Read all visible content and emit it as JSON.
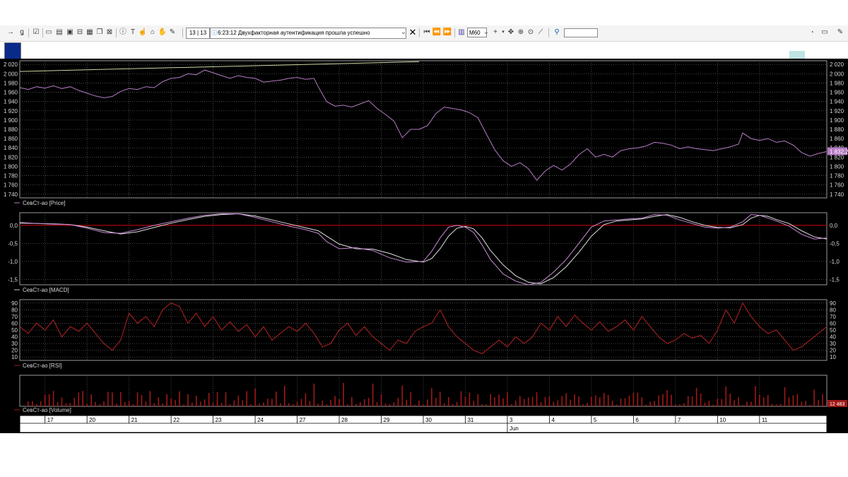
{
  "toolbar": {
    "counter": "13 | 13",
    "notification": "6:23:12  Двухфакторная аутентификация прошла успешно",
    "timeframe": "M60"
  },
  "colors": {
    "price_line": "#b57bc4",
    "macd_line": "#c98ad6",
    "signal_line": "#e0e0e0",
    "rsi_line": "#9a1f1f",
    "volume_bar": "#a21818",
    "zero_line": "#b00000",
    "grid": "#5a5a5a",
    "trend_line": "#c8d8a0"
  },
  "panels": {
    "price": {
      "legend": "СевСт-ао [Price]",
      "ticks": [
        "2 020",
        "2 000",
        "1 980",
        "1 960",
        "1 940",
        "1 920",
        "1 900",
        "1 880",
        "1 860",
        "1 840",
        "1 820",
        "1 800",
        "1 780",
        "1 760",
        "1 740"
      ],
      "tick_values": [
        2020,
        2000,
        1980,
        1960,
        1940,
        1920,
        1900,
        1880,
        1860,
        1840,
        1820,
        1800,
        1780,
        1760,
        1740
      ],
      "last_label": "1 832,2",
      "range": [
        1732,
        2028
      ],
      "series": [
        [
          0,
          1970
        ],
        [
          2,
          1966
        ],
        [
          4,
          1972
        ],
        [
          6,
          1969
        ],
        [
          8,
          1974
        ],
        [
          10,
          1968
        ],
        [
          12,
          1972
        ],
        [
          14,
          1964
        ],
        [
          16,
          1958
        ],
        [
          18,
          1952
        ],
        [
          20,
          1948
        ],
        [
          22,
          1951
        ],
        [
          24,
          1962
        ],
        [
          26,
          1968
        ],
        [
          28,
          1966
        ],
        [
          30,
          1972
        ],
        [
          32,
          1970
        ],
        [
          34,
          1983
        ],
        [
          36,
          1990
        ],
        [
          38,
          1992
        ],
        [
          40,
          2000
        ],
        [
          42,
          1998
        ],
        [
          44,
          2008
        ],
        [
          46,
          2002
        ],
        [
          48,
          1996
        ],
        [
          50,
          1990
        ],
        [
          52,
          1996
        ],
        [
          54,
          1992
        ],
        [
          56,
          1990
        ],
        [
          58,
          1982
        ],
        [
          60,
          1984
        ],
        [
          62,
          1986
        ],
        [
          64,
          1990
        ],
        [
          66,
          1992
        ],
        [
          68,
          1988
        ],
        [
          70,
          1990
        ],
        [
          71,
          1972
        ],
        [
          73,
          1940
        ],
        [
          75,
          1930
        ],
        [
          77,
          1932
        ],
        [
          79,
          1928
        ],
        [
          81,
          1935
        ],
        [
          83,
          1942
        ],
        [
          85,
          1925
        ],
        [
          87,
          1912
        ],
        [
          89,
          1898
        ],
        [
          91,
          1862
        ],
        [
          93,
          1880
        ],
        [
          95,
          1880
        ],
        [
          97,
          1888
        ],
        [
          99,
          1914
        ],
        [
          101,
          1928
        ],
        [
          103,
          1925
        ],
        [
          105,
          1922
        ],
        [
          107,
          1916
        ],
        [
          109,
          1905
        ],
        [
          111,
          1870
        ],
        [
          113,
          1836
        ],
        [
          115,
          1812
        ],
        [
          117,
          1800
        ],
        [
          119,
          1808
        ],
        [
          121,
          1795
        ],
        [
          123,
          1770
        ],
        [
          125,
          1790
        ],
        [
          127,
          1802
        ],
        [
          129,
          1792
        ],
        [
          131,
          1805
        ],
        [
          133,
          1825
        ],
        [
          135,
          1838
        ],
        [
          137,
          1820
        ],
        [
          139,
          1826
        ],
        [
          141,
          1820
        ],
        [
          143,
          1834
        ],
        [
          145,
          1838
        ],
        [
          147,
          1840
        ],
        [
          149,
          1844
        ],
        [
          151,
          1852
        ],
        [
          153,
          1850
        ],
        [
          155,
          1846
        ],
        [
          157,
          1838
        ],
        [
          159,
          1842
        ],
        [
          161,
          1838
        ],
        [
          163,
          1836
        ],
        [
          165,
          1834
        ],
        [
          167,
          1838
        ],
        [
          169,
          1842
        ],
        [
          171,
          1848
        ],
        [
          172,
          1872
        ],
        [
          174,
          1860
        ],
        [
          176,
          1856
        ],
        [
          178,
          1860
        ],
        [
          180,
          1852
        ],
        [
          182,
          1855
        ],
        [
          184,
          1846
        ],
        [
          186,
          1830
        ],
        [
          188,
          1822
        ],
        [
          190,
          1828
        ],
        [
          192,
          1832
        ]
      ]
    },
    "macd": {
      "legend": "СевСт-ао [MACD]",
      "ticks": [
        "0,0",
        "-0,5",
        "-1,0",
        "-1,5"
      ],
      "tick_values": [
        0,
        -0.5,
        -1.0,
        -1.5
      ],
      "range": [
        -1.65,
        0.35
      ],
      "macd": [
        [
          0,
          0.08
        ],
        [
          4,
          0.05
        ],
        [
          8,
          0.03
        ],
        [
          12,
          0.02
        ],
        [
          16,
          -0.08
        ],
        [
          20,
          -0.2
        ],
        [
          24,
          -0.22
        ],
        [
          28,
          -0.12
        ],
        [
          32,
          0.0
        ],
        [
          36,
          0.1
        ],
        [
          40,
          0.2
        ],
        [
          44,
          0.28
        ],
        [
          48,
          0.32
        ],
        [
          52,
          0.32
        ],
        [
          56,
          0.22
        ],
        [
          60,
          0.1
        ],
        [
          64,
          -0.02
        ],
        [
          68,
          -0.12
        ],
        [
          71,
          -0.22
        ],
        [
          73,
          -0.45
        ],
        [
          76,
          -0.65
        ],
        [
          80,
          -0.62
        ],
        [
          84,
          -0.7
        ],
        [
          88,
          -0.9
        ],
        [
          92,
          -1.02
        ],
        [
          96,
          -1.0
        ],
        [
          98,
          -0.72
        ],
        [
          100,
          -0.35
        ],
        [
          102,
          -0.05
        ],
        [
          104,
          0.0
        ],
        [
          106,
          -0.05
        ],
        [
          108,
          -0.2
        ],
        [
          110,
          -0.55
        ],
        [
          112,
          -0.95
        ],
        [
          115,
          -1.35
        ],
        [
          118,
          -1.55
        ],
        [
          121,
          -1.65
        ],
        [
          124,
          -1.58
        ],
        [
          127,
          -1.3
        ],
        [
          130,
          -0.95
        ],
        [
          133,
          -0.5
        ],
        [
          136,
          -0.05
        ],
        [
          139,
          0.12
        ],
        [
          142,
          0.15
        ],
        [
          145,
          0.18
        ],
        [
          148,
          0.2
        ],
        [
          151,
          0.3
        ],
        [
          154,
          0.28
        ],
        [
          157,
          0.15
        ],
        [
          160,
          0.05
        ],
        [
          163,
          -0.05
        ],
        [
          166,
          -0.08
        ],
        [
          169,
          -0.05
        ],
        [
          172,
          0.1
        ],
        [
          174,
          0.3
        ],
        [
          176,
          0.28
        ],
        [
          178,
          0.2
        ],
        [
          180,
          0.12
        ],
        [
          183,
          -0.02
        ],
        [
          186,
          -0.25
        ],
        [
          189,
          -0.38
        ],
        [
          192,
          -0.35
        ]
      ],
      "signal": [
        [
          0,
          0.06
        ],
        [
          4,
          0.05
        ],
        [
          8,
          0.04
        ],
        [
          12,
          0.02
        ],
        [
          16,
          -0.05
        ],
        [
          20,
          -0.15
        ],
        [
          24,
          -0.24
        ],
        [
          28,
          -0.18
        ],
        [
          32,
          -0.06
        ],
        [
          36,
          0.06
        ],
        [
          40,
          0.16
        ],
        [
          44,
          0.25
        ],
        [
          48,
          0.3
        ],
        [
          52,
          0.32
        ],
        [
          56,
          0.26
        ],
        [
          60,
          0.15
        ],
        [
          64,
          0.04
        ],
        [
          68,
          -0.07
        ],
        [
          71,
          -0.15
        ],
        [
          73,
          -0.3
        ],
        [
          76,
          -0.52
        ],
        [
          80,
          -0.65
        ],
        [
          84,
          -0.66
        ],
        [
          88,
          -0.78
        ],
        [
          92,
          -0.95
        ],
        [
          96,
          -1.02
        ],
        [
          98,
          -0.92
        ],
        [
          100,
          -0.65
        ],
        [
          102,
          -0.3
        ],
        [
          104,
          -0.08
        ],
        [
          106,
          -0.03
        ],
        [
          108,
          -0.1
        ],
        [
          110,
          -0.35
        ],
        [
          112,
          -0.7
        ],
        [
          115,
          -1.1
        ],
        [
          118,
          -1.4
        ],
        [
          121,
          -1.58
        ],
        [
          124,
          -1.62
        ],
        [
          127,
          -1.45
        ],
        [
          130,
          -1.15
        ],
        [
          133,
          -0.75
        ],
        [
          136,
          -0.3
        ],
        [
          139,
          0.02
        ],
        [
          142,
          0.12
        ],
        [
          145,
          0.15
        ],
        [
          148,
          0.18
        ],
        [
          151,
          0.25
        ],
        [
          154,
          0.3
        ],
        [
          157,
          0.22
        ],
        [
          160,
          0.1
        ],
        [
          163,
          0.0
        ],
        [
          166,
          -0.06
        ],
        [
          169,
          -0.07
        ],
        [
          172,
          0.02
        ],
        [
          174,
          0.2
        ],
        [
          176,
          0.28
        ],
        [
          178,
          0.25
        ],
        [
          180,
          0.16
        ],
        [
          183,
          0.05
        ],
        [
          186,
          -0.15
        ],
        [
          189,
          -0.32
        ],
        [
          192,
          -0.38
        ]
      ]
    },
    "rsi": {
      "legend": "СевСт-ао [RSI]",
      "ticks": [
        "90",
        "80",
        "70",
        "60",
        "50",
        "40",
        "30",
        "20",
        "10"
      ],
      "tick_values": [
        90,
        80,
        70,
        60,
        50,
        40,
        30,
        20,
        10
      ],
      "range": [
        5,
        95
      ],
      "series": [
        [
          0,
          55
        ],
        [
          2,
          45
        ],
        [
          4,
          60
        ],
        [
          6,
          50
        ],
        [
          8,
          65
        ],
        [
          10,
          40
        ],
        [
          12,
          55
        ],
        [
          14,
          48
        ],
        [
          16,
          60
        ],
        [
          18,
          45
        ],
        [
          20,
          30
        ],
        [
          22,
          20
        ],
        [
          24,
          35
        ],
        [
          26,
          75
        ],
        [
          28,
          60
        ],
        [
          30,
          70
        ],
        [
          32,
          55
        ],
        [
          34,
          80
        ],
        [
          36,
          90
        ],
        [
          38,
          85
        ],
        [
          40,
          60
        ],
        [
          42,
          75
        ],
        [
          44,
          55
        ],
        [
          46,
          70
        ],
        [
          48,
          50
        ],
        [
          50,
          62
        ],
        [
          52,
          48
        ],
        [
          54,
          58
        ],
        [
          56,
          40
        ],
        [
          58,
          55
        ],
        [
          60,
          35
        ],
        [
          62,
          45
        ],
        [
          64,
          55
        ],
        [
          66,
          48
        ],
        [
          68,
          60
        ],
        [
          70,
          45
        ],
        [
          72,
          25
        ],
        [
          74,
          30
        ],
        [
          76,
          50
        ],
        [
          78,
          60
        ],
        [
          80,
          42
        ],
        [
          82,
          55
        ],
        [
          84,
          40
        ],
        [
          86,
          30
        ],
        [
          88,
          20
        ],
        [
          90,
          35
        ],
        [
          92,
          30
        ],
        [
          94,
          48
        ],
        [
          96,
          55
        ],
        [
          98,
          60
        ],
        [
          100,
          80
        ],
        [
          102,
          55
        ],
        [
          104,
          40
        ],
        [
          106,
          30
        ],
        [
          108,
          20
        ],
        [
          110,
          15
        ],
        [
          112,
          25
        ],
        [
          114,
          35
        ],
        [
          116,
          25
        ],
        [
          118,
          40
        ],
        [
          120,
          30
        ],
        [
          122,
          40
        ],
        [
          124,
          60
        ],
        [
          126,
          50
        ],
        [
          128,
          70
        ],
        [
          130,
          55
        ],
        [
          132,
          72
        ],
        [
          134,
          60
        ],
        [
          136,
          50
        ],
        [
          138,
          62
        ],
        [
          140,
          48
        ],
        [
          142,
          55
        ],
        [
          144,
          65
        ],
        [
          146,
          50
        ],
        [
          148,
          70
        ],
        [
          150,
          55
        ],
        [
          152,
          40
        ],
        [
          154,
          30
        ],
        [
          156,
          35
        ],
        [
          158,
          45
        ],
        [
          160,
          38
        ],
        [
          162,
          42
        ],
        [
          164,
          30
        ],
        [
          166,
          50
        ],
        [
          168,
          80
        ],
        [
          170,
          60
        ],
        [
          172,
          90
        ],
        [
          174,
          70
        ],
        [
          176,
          55
        ],
        [
          178,
          45
        ],
        [
          180,
          50
        ],
        [
          182,
          35
        ],
        [
          184,
          20
        ],
        [
          186,
          25
        ],
        [
          188,
          35
        ],
        [
          190,
          45
        ],
        [
          192,
          55
        ]
      ]
    },
    "volume": {
      "legend": "СевСт-ао [Volume]",
      "last_label": "12 483"
    }
  },
  "time_axis": {
    "days": [
      {
        "label": "17",
        "i": 6
      },
      {
        "label": "20",
        "i": 16
      },
      {
        "label": "21",
        "i": 26
      },
      {
        "label": "22",
        "i": 36
      },
      {
        "label": "23",
        "i": 46
      },
      {
        "label": "24",
        "i": 56
      },
      {
        "label": "27",
        "i": 66
      },
      {
        "label": "28",
        "i": 76
      },
      {
        "label": "29",
        "i": 86
      },
      {
        "label": "30",
        "i": 96
      },
      {
        "label": "31",
        "i": 106
      },
      {
        "label": "3",
        "i": 116
      },
      {
        "label": "4",
        "i": 126
      },
      {
        "label": "5",
        "i": 136
      },
      {
        "label": "6",
        "i": 146
      },
      {
        "label": "7",
        "i": 156
      },
      {
        "label": "10",
        "i": 166
      },
      {
        "label": "11",
        "i": 176
      }
    ],
    "month": {
      "label": "Jun",
      "i": 116
    },
    "length": 193
  }
}
